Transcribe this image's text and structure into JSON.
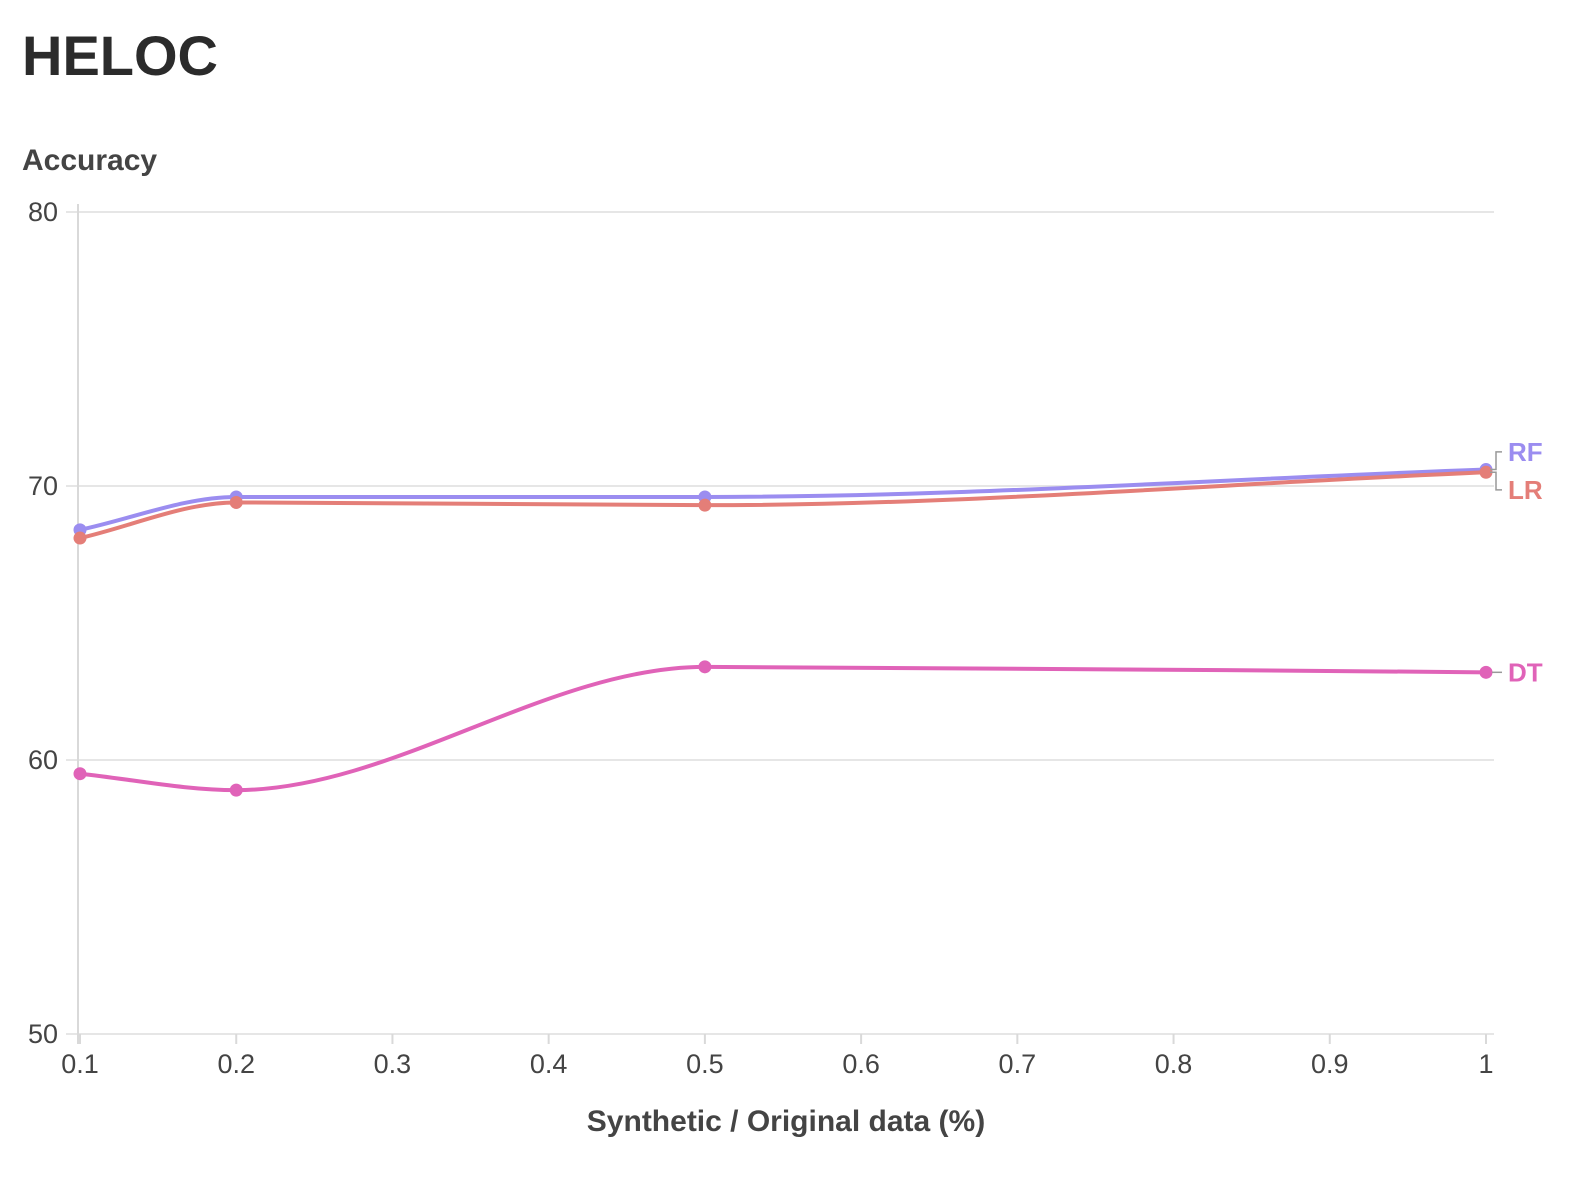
{
  "chart_data": {
    "type": "line",
    "title": "HELOC",
    "ylabel": "Accuracy",
    "xlabel": "Synthetic / Original data (%)",
    "ylim": [
      50,
      80
    ],
    "xlim": [
      0.1,
      1
    ],
    "yticks": [
      50,
      60,
      70,
      80
    ],
    "xticks": [
      0.1,
      0.2,
      0.3,
      0.4,
      0.5,
      0.6,
      0.7,
      0.8,
      0.9,
      1
    ],
    "ytick_labels": [
      "50",
      "60",
      "70",
      "80"
    ],
    "xtick_labels": [
      "0.1",
      "0.2",
      "0.3",
      "0.4",
      "0.5",
      "0.6",
      "0.7",
      "0.8",
      "0.9",
      "1"
    ],
    "grid": "horizontal",
    "legend": "direct labels at right end of lines",
    "series": [
      {
        "name": "RF",
        "color": "#9b8df0",
        "x": [
          0.1,
          0.2,
          0.5,
          1
        ],
        "values": [
          68.4,
          69.6,
          69.6,
          70.6
        ]
      },
      {
        "name": "LR",
        "color": "#e47e78",
        "x": [
          0.1,
          0.2,
          0.5,
          1
        ],
        "values": [
          68.1,
          69.4,
          69.3,
          70.5
        ]
      },
      {
        "name": "DT",
        "color": "#e063b8",
        "x": [
          0.1,
          0.2,
          0.5,
          1
        ],
        "values": [
          59.5,
          58.9,
          63.4,
          63.2
        ]
      }
    ]
  }
}
